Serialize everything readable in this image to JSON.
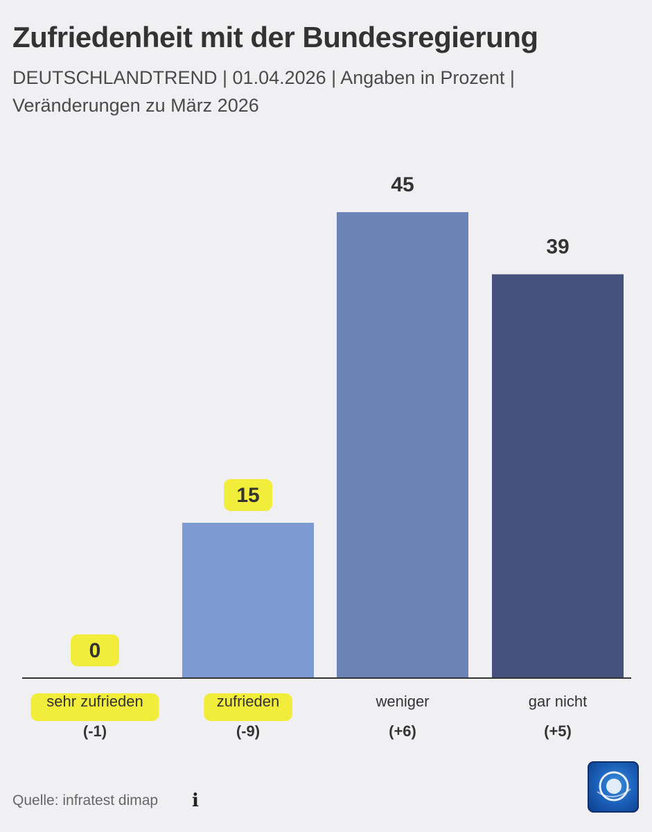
{
  "header": {
    "title": "Zufriedenheit mit der Bundesregierung",
    "subtitle": "DEUTSCHLANDTREND | 01.04.2026 | Angaben in Prozent | Veränderungen zu März 2026"
  },
  "chart_data": {
    "type": "bar",
    "categories": [
      "sehr zufrieden",
      "zufrieden",
      "weniger",
      "gar nicht"
    ],
    "values": [
      0,
      15,
      45,
      39
    ],
    "changes": [
      "(-1)",
      "(-9)",
      "(+6)",
      "(+5)"
    ],
    "colors": [
      "#9fb7e0",
      "#7d9ad1",
      "#6b84b5",
      "#45527d"
    ],
    "highlight_color": "#f2ec1a",
    "highlighted": [
      "sehr-zufrieden-value",
      "sehr-zufrieden-label",
      "zufrieden-value",
      "zufrieden-label"
    ],
    "ylim": [
      0,
      45
    ],
    "grid": false,
    "legend": "none"
  },
  "footer": {
    "source": "Quelle: infratest dimap",
    "info_icon": "info-icon",
    "logo": "tagesschau-logo"
  }
}
